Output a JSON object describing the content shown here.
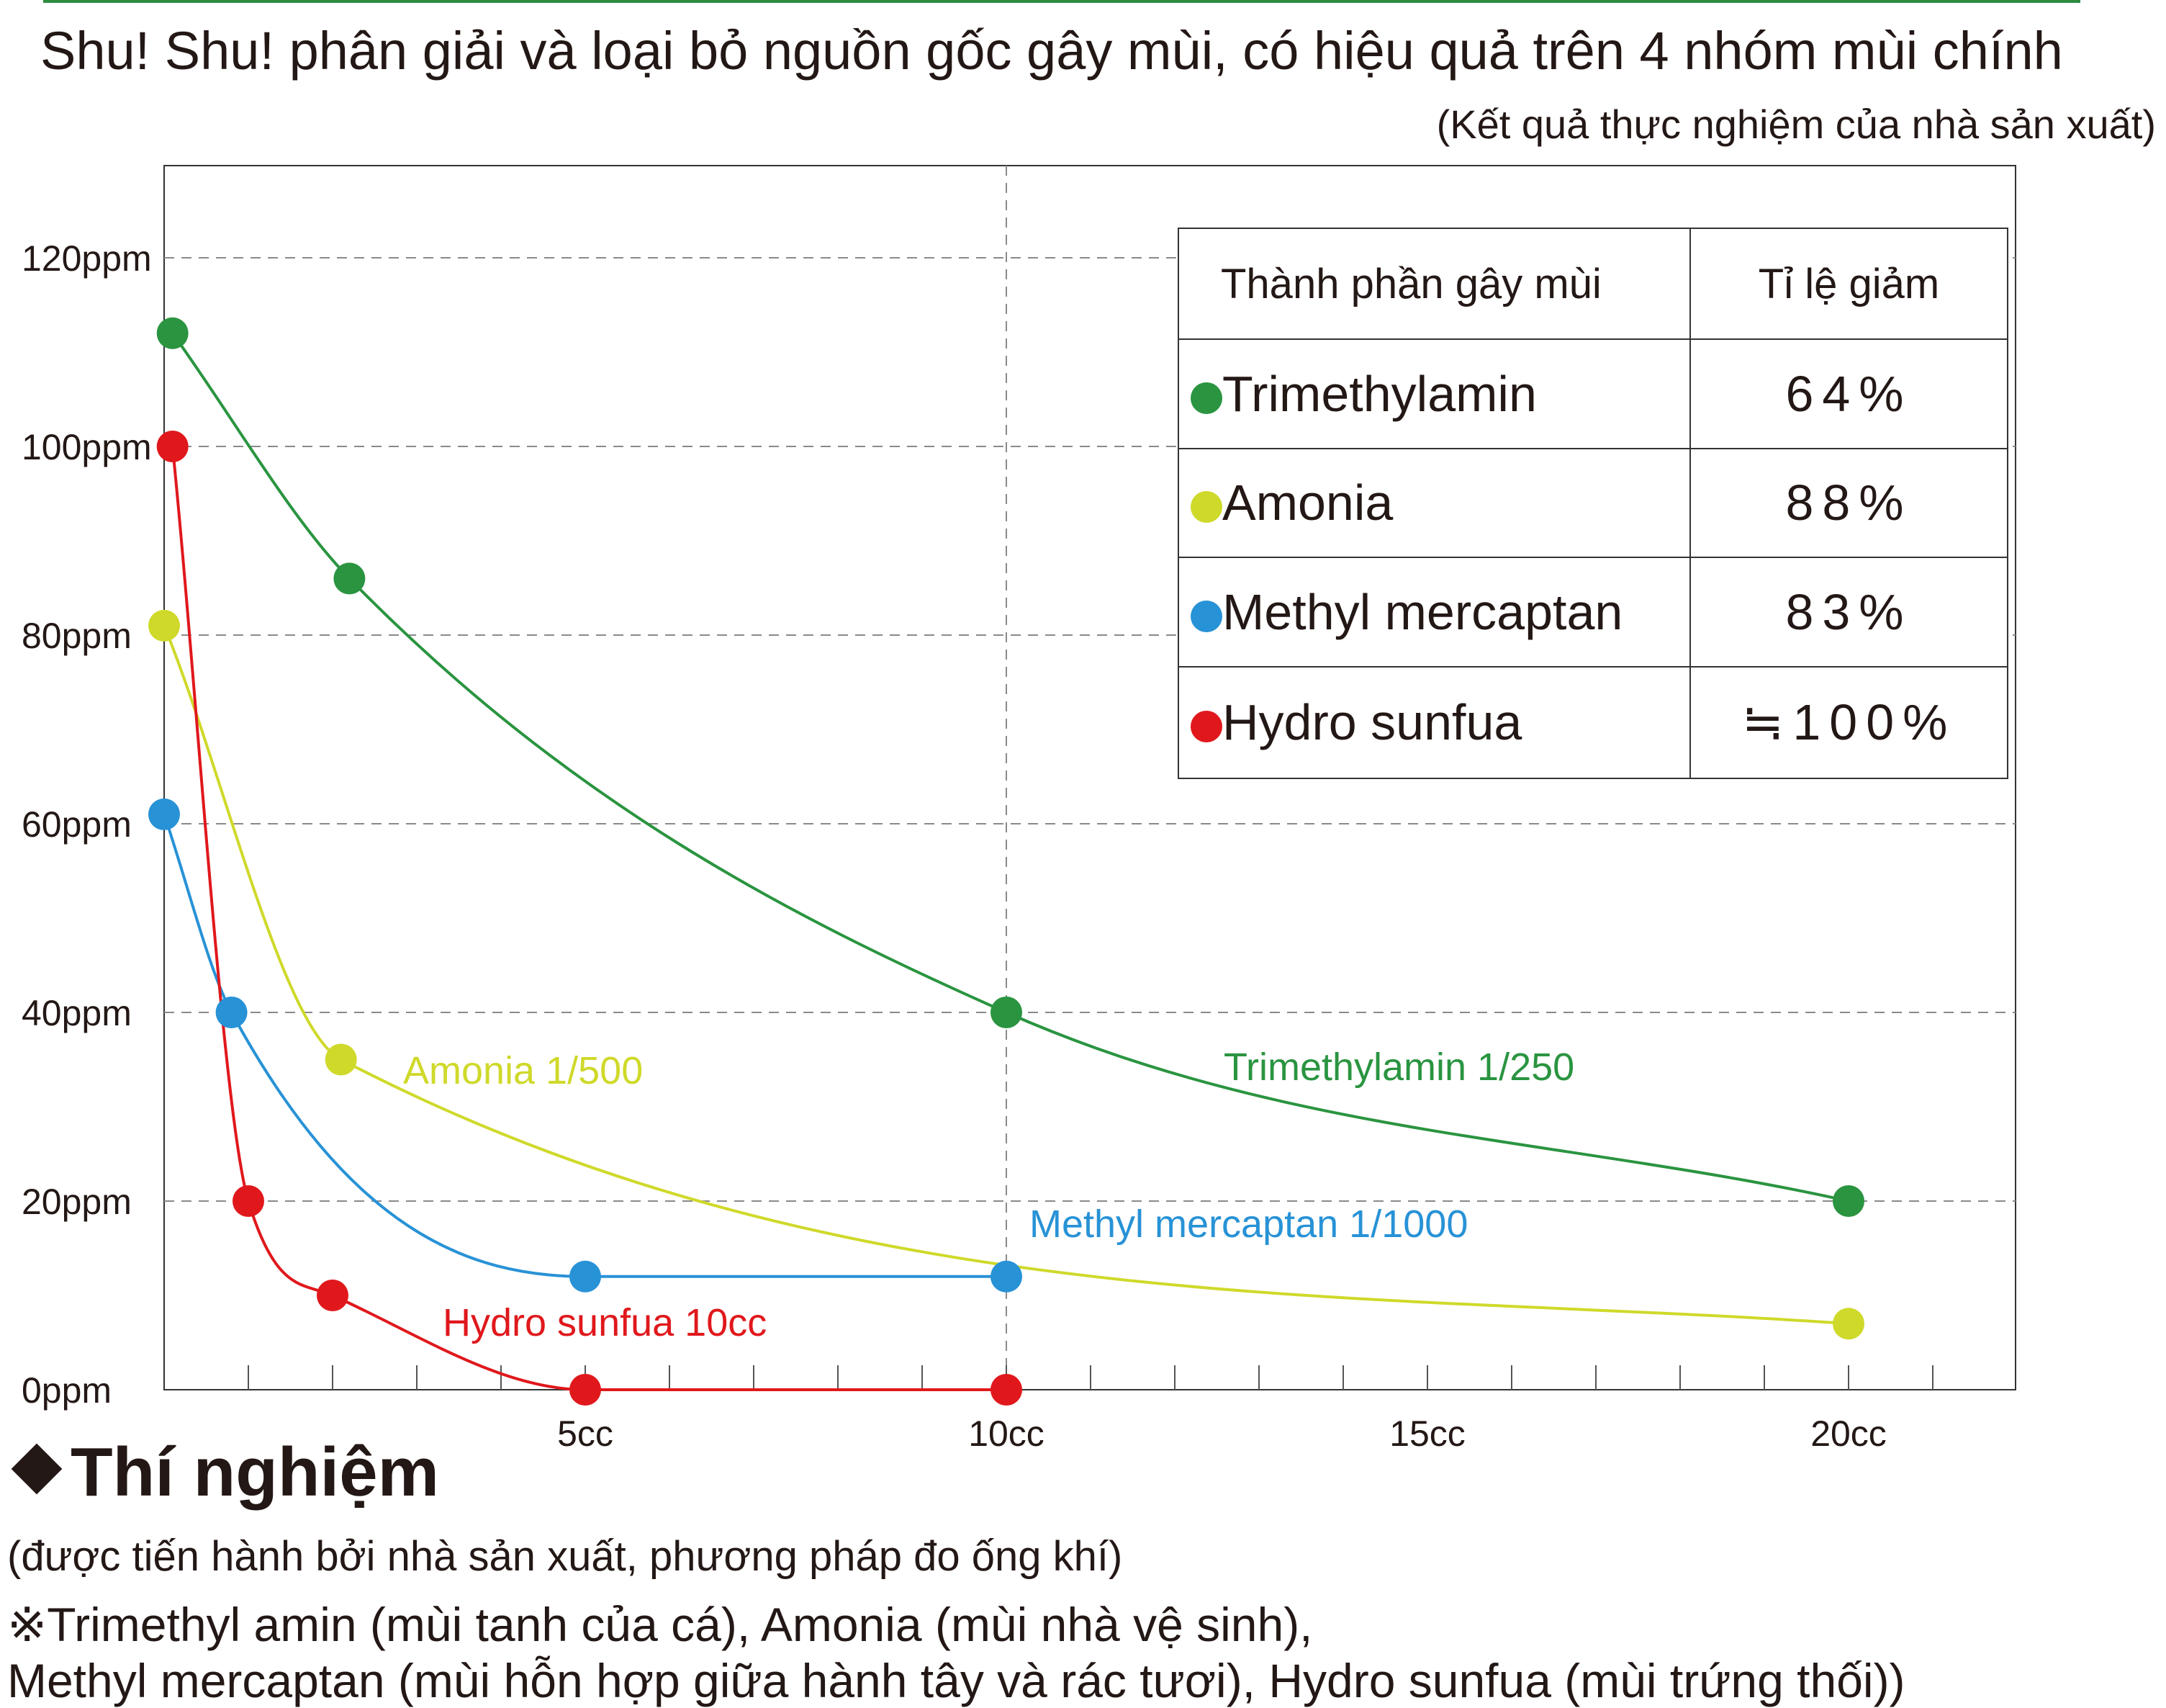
{
  "header": {
    "title": "Shu! Shu! phân giải và loại bỏ nguồn gốc gây mùi, có hiệu quả trên 4 nhóm mùi chính",
    "subtitle": "(Kết quả thực nghiệm của nhà sản xuất)"
  },
  "legend_table": {
    "col1_header": "Thành phần gây mùi",
    "col2_header": "Tỉ lệ giảm",
    "rows": [
      {
        "name": "Trimethylamin",
        "value": "64%",
        "color": "#2a9440"
      },
      {
        "name": "Amonia",
        "value": "88%",
        "color": "#cfd92a"
      },
      {
        "name": "Methyl mercaptan",
        "value": "83%",
        "color": "#2892d6"
      },
      {
        "name": "Hydro sunfua",
        "value": "≒100%",
        "color": "#e0181c"
      }
    ]
  },
  "chart_data": {
    "type": "line",
    "xlim": [
      0,
      22
    ],
    "ylim": [
      0,
      130
    ],
    "x_ticks": [
      5,
      10,
      15,
      20
    ],
    "x_tick_labels": [
      "5cc",
      "10cc",
      "15cc",
      "20cc"
    ],
    "y_ticks": [
      0,
      20,
      40,
      60,
      80,
      100,
      120
    ],
    "y_tick_labels": [
      "0ppm",
      "20ppm",
      "40ppm",
      "60ppm",
      "80ppm",
      "100ppm",
      "120ppm"
    ],
    "grid": true,
    "smooth": true,
    "series": [
      {
        "name": "Trimethylamin 1/250",
        "color": "#2a9440",
        "x": [
          0.1,
          2.2,
          10,
          20
        ],
        "y": [
          112,
          86,
          40,
          20
        ]
      },
      {
        "name": "Amonia 1/500",
        "color": "#cfd92a",
        "x": [
          0,
          2.1,
          20
        ],
        "y": [
          81,
          35,
          7
        ]
      },
      {
        "name": "Methyl mercaptan 1/1000",
        "color": "#2892d6",
        "x": [
          0,
          0.8,
          5,
          10
        ],
        "y": [
          61,
          40,
          12,
          12
        ]
      },
      {
        "name": "Hydro sunfua 10cc",
        "color": "#e0181c",
        "x": [
          0.1,
          1,
          2,
          5,
          10
        ],
        "y": [
          100,
          20,
          10,
          0,
          0
        ]
      }
    ]
  },
  "experiment": {
    "heading": "Thí nghiệm",
    "note1": "(được tiến hành bởi nhà sản xuất, phương pháp đo ống khí)",
    "note2": "※Trimethyl amin (mùi tanh của cá), Amonia (mùi nhà vệ sinh),",
    "note3": "Methyl mercaptan (mùi hỗn hợp giữa hành tây và rác tươi), Hydro sunfua (mùi trứng thối))"
  }
}
